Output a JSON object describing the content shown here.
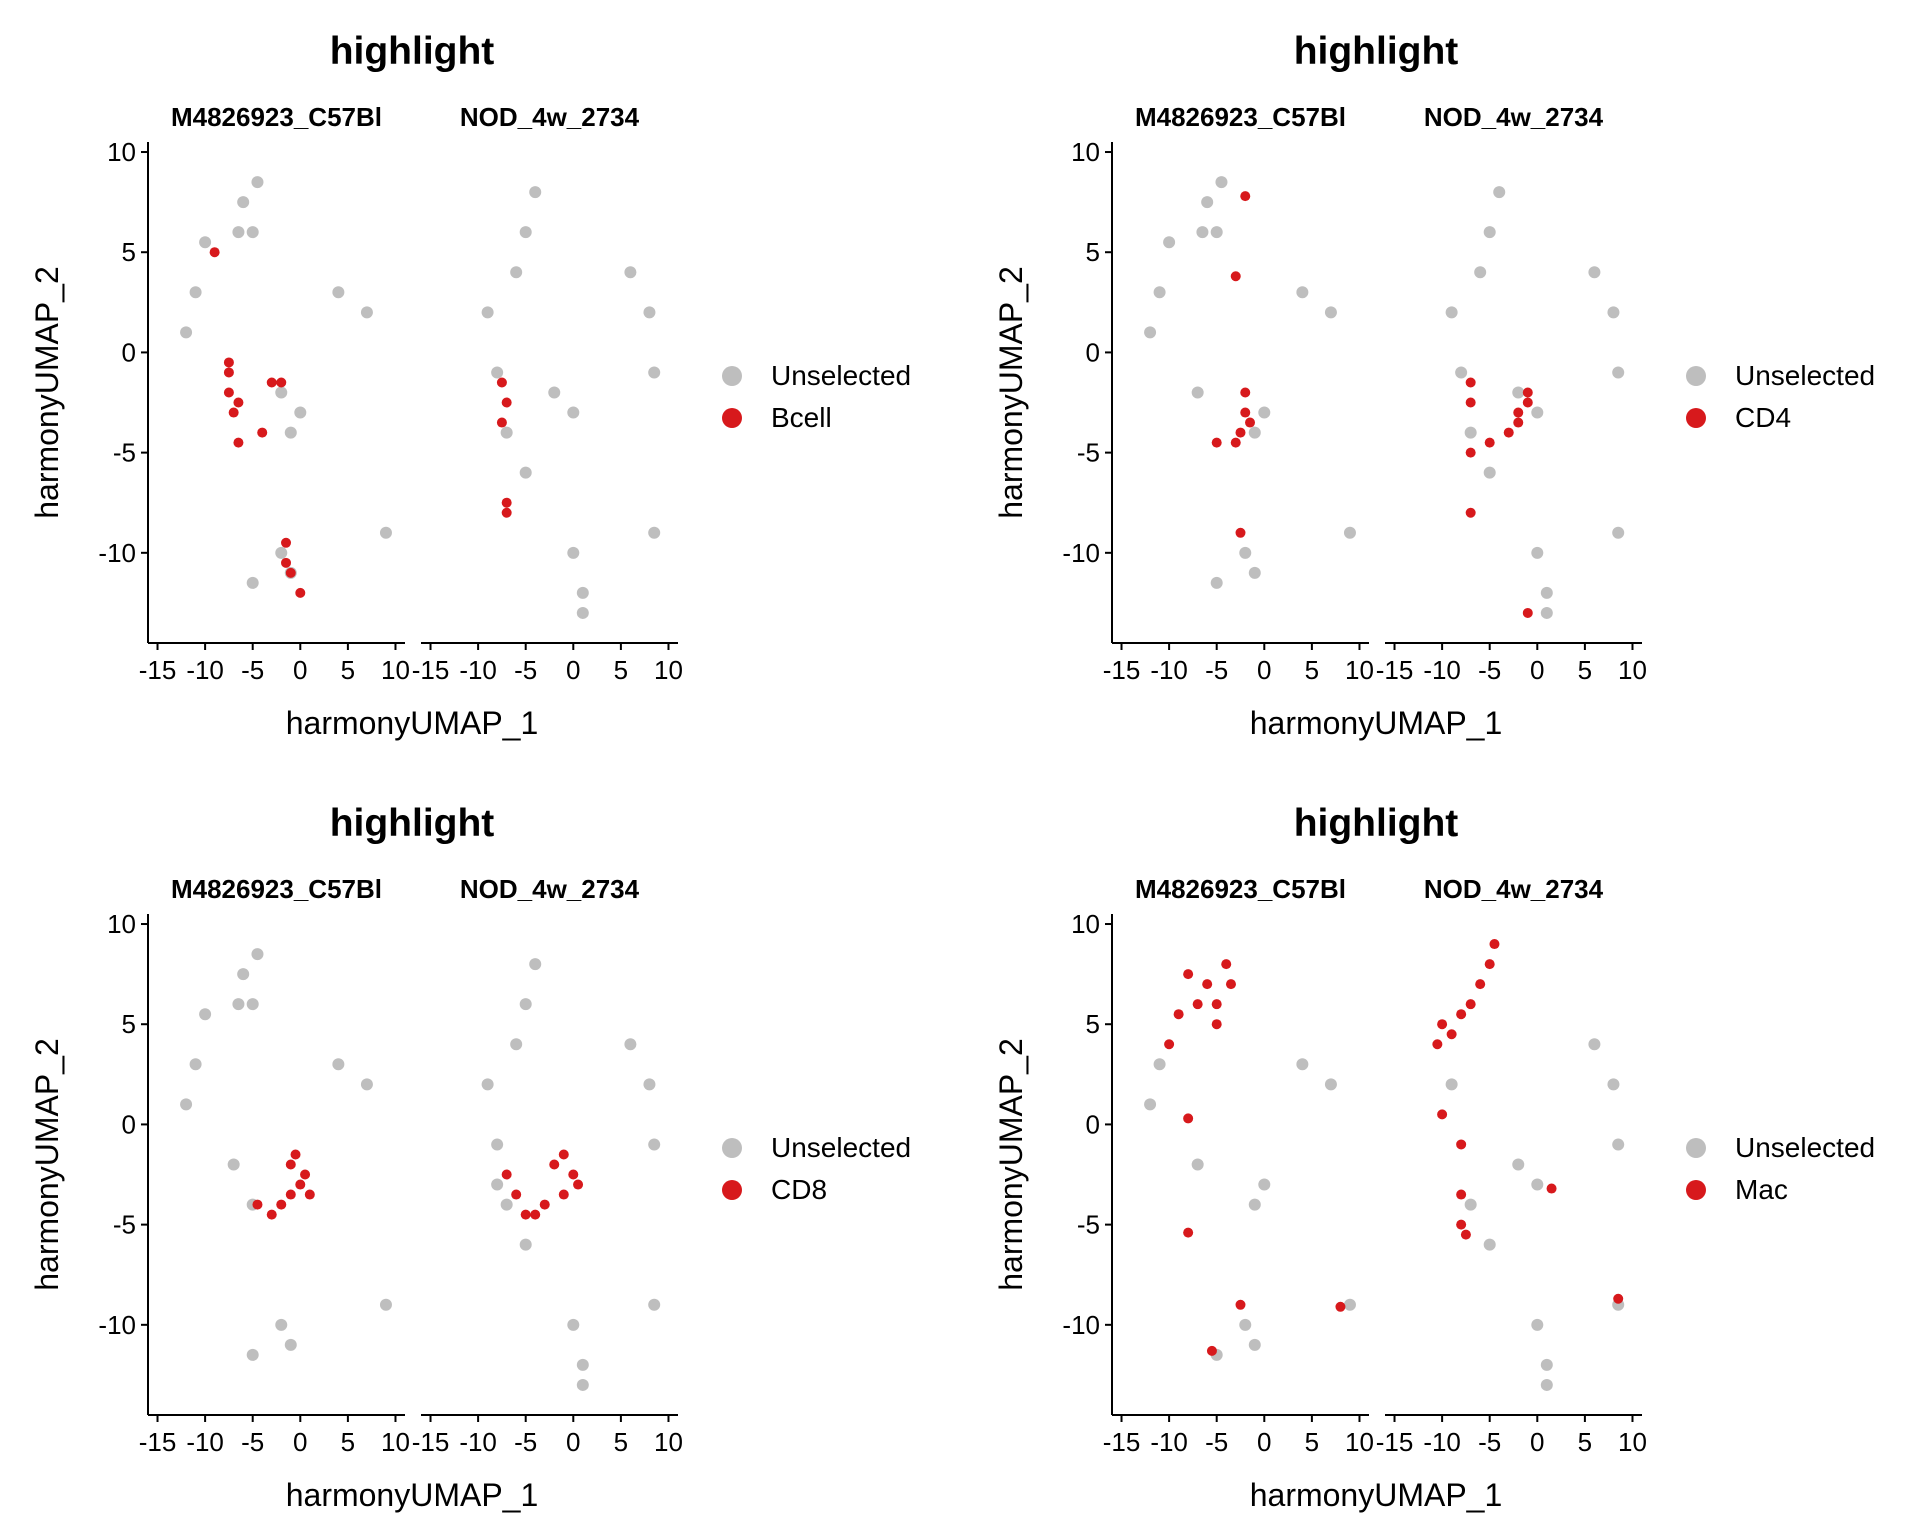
{
  "colors": {
    "unselected": "#BEBEBE",
    "selected": "#D7191C",
    "axis": "#000000"
  },
  "chart_data": [
    {
      "type": "scatter",
      "title": "highlight",
      "panels": [
        "M4826923_C57Bl",
        "NOD_4w_2734"
      ],
      "xlabel": "harmonyUMAP_1",
      "ylabel": "harmonyUMAP_2",
      "xlim": [
        -16,
        11
      ],
      "ylim": [
        -14.5,
        10.5
      ],
      "xticks": [
        -15,
        -10,
        -5,
        0,
        5,
        10
      ],
      "yticks": [
        -10,
        -5,
        0,
        5,
        10
      ],
      "xtick_labels": [
        "-15",
        "-10",
        "-5",
        "0",
        "5",
        "10"
      ],
      "ytick_labels": [
        "-10",
        "-5",
        "0",
        "5",
        "10"
      ],
      "legend": {
        "placement": "right",
        "entries": [
          "Unselected",
          "Bcell"
        ]
      },
      "series": [
        {
          "name": "Unselected",
          "points": [
            [
              [
                -6,
                7.5
              ],
              [
                -5,
                6
              ],
              [
                -4.5,
                8.5
              ],
              [
                -6.5,
                6
              ],
              [
                -10,
                5.5
              ],
              [
                -11,
                3
              ],
              [
                -12,
                1
              ],
              [
                4,
                3
              ],
              [
                7,
                2
              ],
              [
                -2,
                -2
              ],
              [
                -1,
                -4
              ],
              [
                0,
                -3
              ],
              [
                -2,
                -10
              ],
              [
                -1,
                -11
              ],
              [
                -5,
                -11.5
              ],
              [
                9,
                -9
              ]
            ],
            [
              [
                -4,
                8
              ],
              [
                -5,
                6
              ],
              [
                -6,
                4
              ],
              [
                -8,
                -1
              ],
              [
                -9,
                2
              ],
              [
                -7,
                -4
              ],
              [
                -5,
                -6
              ],
              [
                6,
                4
              ],
              [
                8,
                2
              ],
              [
                8.5,
                -1
              ],
              [
                -2,
                -2
              ],
              [
                0,
                -3
              ],
              [
                1,
                -12
              ],
              [
                0,
                -10
              ],
              [
                1,
                -13
              ],
              [
                8.5,
                -9
              ]
            ]
          ]
        },
        {
          "name": "Bcell",
          "points": [
            [
              [
                -9,
                5
              ],
              [
                -7.5,
                -1
              ],
              [
                -7.5,
                -2
              ],
              [
                -7,
                -3
              ],
              [
                -7.5,
                -0.5
              ],
              [
                -6.5,
                -2.5
              ],
              [
                -3,
                -1.5
              ],
              [
                -2,
                -1.5
              ],
              [
                -4,
                -4
              ],
              [
                -6.5,
                -4.5
              ],
              [
                -1.5,
                -9.5
              ],
              [
                -1.5,
                -10.5
              ],
              [
                -1,
                -11
              ],
              [
                0,
                -12
              ]
            ],
            [
              [
                -7.5,
                -1.5
              ],
              [
                -7,
                -2.5
              ],
              [
                -7.5,
                -3.5
              ],
              [
                -7,
                -7.5
              ],
              [
                -7,
                -8
              ]
            ]
          ]
        }
      ]
    },
    {
      "type": "scatter",
      "title": "highlight",
      "panels": [
        "M4826923_C57Bl",
        "NOD_4w_2734"
      ],
      "xlabel": "harmonyUMAP_1",
      "ylabel": "harmonyUMAP_2",
      "xlim": [
        -16,
        11
      ],
      "ylim": [
        -14.5,
        10.5
      ],
      "xticks": [
        -15,
        -10,
        -5,
        0,
        5,
        10
      ],
      "yticks": [
        -10,
        -5,
        0,
        5,
        10
      ],
      "xtick_labels": [
        "-15",
        "-10",
        "-5",
        "0",
        "5",
        "10"
      ],
      "ytick_labels": [
        "-10",
        "-5",
        "0",
        "5",
        "10"
      ],
      "legend": {
        "placement": "right",
        "entries": [
          "Unselected",
          "CD4"
        ]
      },
      "series": [
        {
          "name": "Unselected",
          "points": [
            [
              [
                -6,
                7.5
              ],
              [
                -5,
                6
              ],
              [
                -4.5,
                8.5
              ],
              [
                -6.5,
                6
              ],
              [
                -10,
                5.5
              ],
              [
                -11,
                3
              ],
              [
                -12,
                1
              ],
              [
                4,
                3
              ],
              [
                7,
                2
              ],
              [
                -7,
                -2
              ],
              [
                -1,
                -4
              ],
              [
                0,
                -3
              ],
              [
                -2,
                -10
              ],
              [
                -1,
                -11
              ],
              [
                -5,
                -11.5
              ],
              [
                9,
                -9
              ]
            ],
            [
              [
                -4,
                8
              ],
              [
                -5,
                6
              ],
              [
                -6,
                4
              ],
              [
                -8,
                -1
              ],
              [
                -9,
                2
              ],
              [
                -7,
                -4
              ],
              [
                -5,
                -6
              ],
              [
                6,
                4
              ],
              [
                8,
                2
              ],
              [
                8.5,
                -1
              ],
              [
                -2,
                -2
              ],
              [
                0,
                -3
              ],
              [
                1,
                -12
              ],
              [
                0,
                -10
              ],
              [
                1,
                -13
              ],
              [
                8.5,
                -9
              ]
            ]
          ]
        },
        {
          "name": "CD4",
          "points": [
            [
              [
                -2,
                7.8
              ],
              [
                -3,
                3.8
              ],
              [
                -2,
                -3
              ],
              [
                -2.5,
                -4
              ],
              [
                -2,
                -2
              ],
              [
                -1.5,
                -3.5
              ],
              [
                -3,
                -4.5
              ],
              [
                -5,
                -4.5
              ],
              [
                -2.5,
                -9
              ]
            ],
            [
              [
                -7,
                -1.5
              ],
              [
                -7,
                -2.5
              ],
              [
                -2,
                -3
              ],
              [
                -1,
                -2
              ],
              [
                -3,
                -4
              ],
              [
                -5,
                -4.5
              ],
              [
                -2,
                -3.5
              ],
              [
                -1,
                -2.5
              ],
              [
                -7,
                -5
              ],
              [
                -7,
                -8
              ],
              [
                -1,
                -13
              ]
            ]
          ]
        }
      ]
    },
    {
      "type": "scatter",
      "title": "highlight",
      "panels": [
        "M4826923_C57Bl",
        "NOD_4w_2734"
      ],
      "xlabel": "harmonyUMAP_1",
      "ylabel": "harmonyUMAP_2",
      "xlim": [
        -16,
        11
      ],
      "ylim": [
        -14.5,
        10.5
      ],
      "xticks": [
        -15,
        -10,
        -5,
        0,
        5,
        10
      ],
      "yticks": [
        -10,
        -5,
        0,
        5,
        10
      ],
      "xtick_labels": [
        "-15",
        "-10",
        "-5",
        "0",
        "5",
        "10"
      ],
      "ytick_labels": [
        "-10",
        "-5",
        "0",
        "5",
        "10"
      ],
      "legend": {
        "placement": "right",
        "entries": [
          "Unselected",
          "CD8"
        ]
      },
      "series": [
        {
          "name": "Unselected",
          "points": [
            [
              [
                -6,
                7.5
              ],
              [
                -5,
                6
              ],
              [
                -4.5,
                8.5
              ],
              [
                -6.5,
                6
              ],
              [
                -10,
                5.5
              ],
              [
                -11,
                3
              ],
              [
                -12,
                1
              ],
              [
                4,
                3
              ],
              [
                7,
                2
              ],
              [
                -7,
                -2
              ],
              [
                -5,
                -4
              ],
              [
                -2,
                -10
              ],
              [
                -1,
                -11
              ],
              [
                -5,
                -11.5
              ],
              [
                9,
                -9
              ]
            ],
            [
              [
                -4,
                8
              ],
              [
                -5,
                6
              ],
              [
                -6,
                4
              ],
              [
                -8,
                -1
              ],
              [
                -9,
                2
              ],
              [
                -7,
                -4
              ],
              [
                -5,
                -6
              ],
              [
                6,
                4
              ],
              [
                8,
                2
              ],
              [
                8.5,
                -1
              ],
              [
                -8,
                -3
              ],
              [
                1,
                -12
              ],
              [
                0,
                -10
              ],
              [
                1,
                -13
              ],
              [
                8.5,
                -9
              ]
            ]
          ]
        },
        {
          "name": "CD8",
          "points": [
            [
              [
                -1,
                -2
              ],
              [
                0,
                -3
              ],
              [
                -0.5,
                -1.5
              ],
              [
                0.5,
                -2.5
              ],
              [
                1,
                -3.5
              ],
              [
                -1,
                -3.5
              ],
              [
                -2,
                -4
              ],
              [
                -3,
                -4.5
              ],
              [
                -4.5,
                -4
              ]
            ],
            [
              [
                -2,
                -2
              ],
              [
                -1,
                -1.5
              ],
              [
                0,
                -2.5
              ],
              [
                -1,
                -3.5
              ],
              [
                0.5,
                -3
              ],
              [
                -3,
                -4
              ],
              [
                -4,
                -4.5
              ],
              [
                -5,
                -4.5
              ],
              [
                -7,
                -2.5
              ],
              [
                -6,
                -3.5
              ]
            ]
          ]
        }
      ]
    },
    {
      "type": "scatter",
      "title": "highlight",
      "panels": [
        "M4826923_C57Bl",
        "NOD_4w_2734"
      ],
      "xlabel": "harmonyUMAP_1",
      "ylabel": "harmonyUMAP_2",
      "xlim": [
        -16,
        11
      ],
      "ylim": [
        -14.5,
        10.5
      ],
      "xticks": [
        -15,
        -10,
        -5,
        0,
        5,
        10
      ],
      "yticks": [
        -10,
        -5,
        0,
        5,
        10
      ],
      "xtick_labels": [
        "-15",
        "-10",
        "-5",
        "0",
        "5",
        "10"
      ],
      "ytick_labels": [
        "-10",
        "-5",
        "0",
        "5",
        "10"
      ],
      "legend": {
        "placement": "right",
        "entries": [
          "Unselected",
          "Mac"
        ]
      },
      "series": [
        {
          "name": "Unselected",
          "points": [
            [
              [
                -11,
                3
              ],
              [
                -12,
                1
              ],
              [
                4,
                3
              ],
              [
                7,
                2
              ],
              [
                -7,
                -2
              ],
              [
                -1,
                -4
              ],
              [
                0,
                -3
              ],
              [
                -2,
                -10
              ],
              [
                -1,
                -11
              ],
              [
                -5,
                -11.5
              ],
              [
                9,
                -9
              ]
            ],
            [
              [
                -9,
                2
              ],
              [
                -7,
                -4
              ],
              [
                -5,
                -6
              ],
              [
                6,
                4
              ],
              [
                8,
                2
              ],
              [
                8.5,
                -1
              ],
              [
                -2,
                -2
              ],
              [
                0,
                -3
              ],
              [
                1,
                -12
              ],
              [
                0,
                -10
              ],
              [
                1,
                -13
              ],
              [
                8.5,
                -9
              ]
            ]
          ]
        },
        {
          "name": "Mac",
          "points": [
            [
              [
                -6,
                7
              ],
              [
                -5,
                6
              ],
              [
                -4,
                8
              ],
              [
                -7,
                6
              ],
              [
                -8,
                7.5
              ],
              [
                -9,
                5.5
              ],
              [
                -10,
                4
              ],
              [
                -3.5,
                7
              ],
              [
                -5,
                5
              ],
              [
                -8,
                0.3
              ],
              [
                -8,
                -5.4
              ],
              [
                -2.5,
                -9
              ],
              [
                -5.5,
                -11.3
              ],
              [
                8,
                -9.1
              ]
            ],
            [
              [
                -5,
                8
              ],
              [
                -4.5,
                9
              ],
              [
                -6,
                7
              ],
              [
                -7,
                6
              ],
              [
                -8,
                5.5
              ],
              [
                -9,
                4.5
              ],
              [
                -10,
                5
              ],
              [
                -10.5,
                4
              ],
              [
                -10,
                0.5
              ],
              [
                -8,
                -1
              ],
              [
                -8,
                -3.5
              ],
              [
                -8,
                -5
              ],
              [
                -7.5,
                -5.5
              ],
              [
                1.5,
                -3.2
              ],
              [
                8.5,
                -8.7
              ]
            ]
          ]
        }
      ]
    }
  ]
}
